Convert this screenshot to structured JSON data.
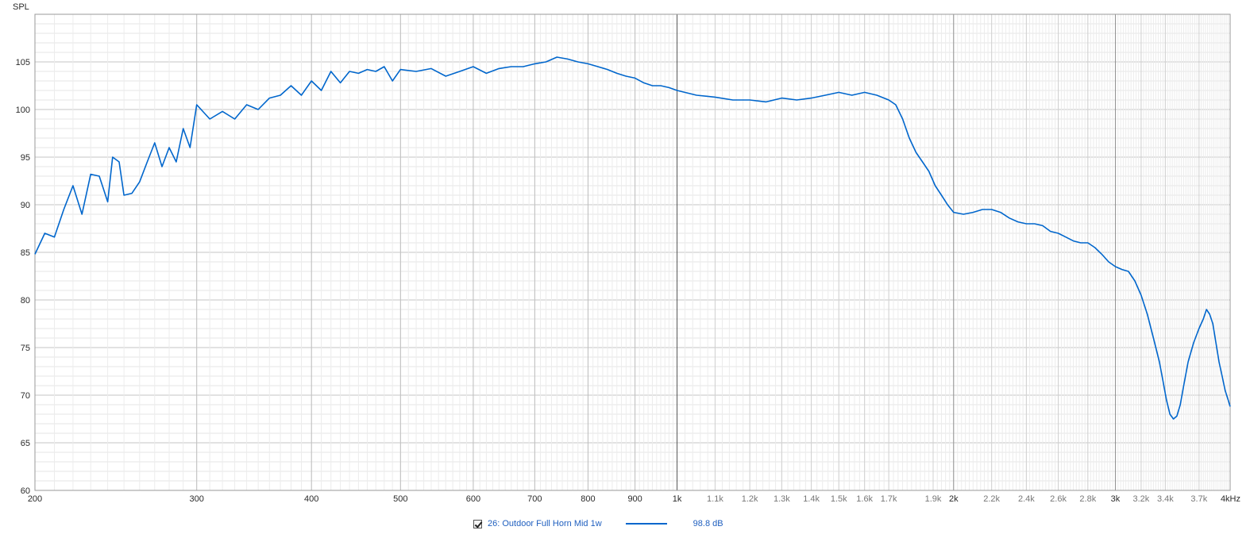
{
  "chart_data": {
    "type": "line",
    "ylabel": "SPL",
    "xunit": "kHz",
    "xscale": "log",
    "xlim": [
      200,
      4000
    ],
    "ylim": [
      60,
      110
    ],
    "yticks": [
      60,
      65,
      70,
      75,
      80,
      85,
      90,
      95,
      100,
      105
    ],
    "xticks_major": [
      {
        "value": 200,
        "label": "200"
      },
      {
        "value": 300,
        "label": "300"
      },
      {
        "value": 400,
        "label": "400"
      },
      {
        "value": 500,
        "label": "500"
      },
      {
        "value": 600,
        "label": "600"
      },
      {
        "value": 700,
        "label": "700"
      },
      {
        "value": 800,
        "label": "800"
      },
      {
        "value": 900,
        "label": "900"
      },
      {
        "value": 1000,
        "label": "1k"
      },
      {
        "value": 2000,
        "label": "2k"
      },
      {
        "value": 3000,
        "label": "3k"
      },
      {
        "value": 4000,
        "label": "4kHz"
      }
    ],
    "xticks_minor": [
      {
        "value": 1100,
        "label": "1.1k"
      },
      {
        "value": 1200,
        "label": "1.2k"
      },
      {
        "value": 1300,
        "label": "1.3k"
      },
      {
        "value": 1400,
        "label": "1.4k"
      },
      {
        "value": 1500,
        "label": "1.5k"
      },
      {
        "value": 1600,
        "label": "1.6k"
      },
      {
        "value": 1700,
        "label": "1.7k"
      },
      {
        "value": 1900,
        "label": "1.9k"
      },
      {
        "value": 2200,
        "label": "2.2k"
      },
      {
        "value": 2400,
        "label": "2.4k"
      },
      {
        "value": 2600,
        "label": "2.6k"
      },
      {
        "value": 2800,
        "label": "2.8k"
      },
      {
        "value": 3200,
        "label": "3.2k"
      },
      {
        "value": 3400,
        "label": "3.4k"
      },
      {
        "value": 3700,
        "label": "3.7k"
      }
    ],
    "grid": true,
    "series": [
      {
        "name": "26: Outdoor Full Horn Mid 1w",
        "color": "#0066cc",
        "legend_value": "98.8 dB",
        "points": [
          [
            200,
            84.8
          ],
          [
            205,
            87.0
          ],
          [
            210,
            86.6
          ],
          [
            215,
            89.5
          ],
          [
            220,
            92.0
          ],
          [
            225,
            89.0
          ],
          [
            230,
            93.2
          ],
          [
            235,
            93.0
          ],
          [
            240,
            90.3
          ],
          [
            243,
            95.0
          ],
          [
            247,
            94.5
          ],
          [
            250,
            91.0
          ],
          [
            255,
            91.2
          ],
          [
            260,
            92.4
          ],
          [
            265,
            94.5
          ],
          [
            270,
            96.5
          ],
          [
            275,
            94.0
          ],
          [
            280,
            96.0
          ],
          [
            285,
            94.5
          ],
          [
            290,
            98.0
          ],
          [
            295,
            96.0
          ],
          [
            300,
            100.5
          ],
          [
            310,
            99.0
          ],
          [
            320,
            99.8
          ],
          [
            330,
            99.0
          ],
          [
            340,
            100.5
          ],
          [
            350,
            100.0
          ],
          [
            360,
            101.2
          ],
          [
            370,
            101.5
          ],
          [
            380,
            102.5
          ],
          [
            390,
            101.5
          ],
          [
            400,
            103.0
          ],
          [
            410,
            102.0
          ],
          [
            420,
            104.0
          ],
          [
            430,
            102.8
          ],
          [
            440,
            104.0
          ],
          [
            450,
            103.8
          ],
          [
            460,
            104.2
          ],
          [
            470,
            104.0
          ],
          [
            480,
            104.5
          ],
          [
            490,
            103.0
          ],
          [
            500,
            104.2
          ],
          [
            520,
            104.0
          ],
          [
            540,
            104.3
          ],
          [
            560,
            103.5
          ],
          [
            580,
            104.0
          ],
          [
            600,
            104.5
          ],
          [
            620,
            103.8
          ],
          [
            640,
            104.3
          ],
          [
            660,
            104.5
          ],
          [
            680,
            104.5
          ],
          [
            700,
            104.8
          ],
          [
            720,
            105.0
          ],
          [
            740,
            105.5
          ],
          [
            760,
            105.3
          ],
          [
            780,
            105.0
          ],
          [
            800,
            104.8
          ],
          [
            820,
            104.5
          ],
          [
            840,
            104.2
          ],
          [
            860,
            103.8
          ],
          [
            880,
            103.5
          ],
          [
            900,
            103.3
          ],
          [
            920,
            102.8
          ],
          [
            940,
            102.5
          ],
          [
            960,
            102.5
          ],
          [
            980,
            102.3
          ],
          [
            1000,
            102.0
          ],
          [
            1050,
            101.5
          ],
          [
            1100,
            101.3
          ],
          [
            1150,
            101.0
          ],
          [
            1200,
            101.0
          ],
          [
            1250,
            100.8
          ],
          [
            1300,
            101.2
          ],
          [
            1350,
            101.0
          ],
          [
            1400,
            101.2
          ],
          [
            1450,
            101.5
          ],
          [
            1500,
            101.8
          ],
          [
            1550,
            101.5
          ],
          [
            1600,
            101.8
          ],
          [
            1650,
            101.5
          ],
          [
            1700,
            101.0
          ],
          [
            1730,
            100.5
          ],
          [
            1760,
            99.0
          ],
          [
            1790,
            97.0
          ],
          [
            1820,
            95.5
          ],
          [
            1850,
            94.5
          ],
          [
            1880,
            93.5
          ],
          [
            1910,
            92.0
          ],
          [
            1940,
            91.0
          ],
          [
            1970,
            90.0
          ],
          [
            2000,
            89.2
          ],
          [
            2050,
            89.0
          ],
          [
            2100,
            89.2
          ],
          [
            2150,
            89.5
          ],
          [
            2200,
            89.5
          ],
          [
            2250,
            89.2
          ],
          [
            2300,
            88.6
          ],
          [
            2350,
            88.2
          ],
          [
            2400,
            88.0
          ],
          [
            2450,
            88.0
          ],
          [
            2500,
            87.8
          ],
          [
            2550,
            87.2
          ],
          [
            2600,
            87.0
          ],
          [
            2650,
            86.6
          ],
          [
            2700,
            86.2
          ],
          [
            2750,
            86.0
          ],
          [
            2800,
            86.0
          ],
          [
            2850,
            85.5
          ],
          [
            2900,
            84.8
          ],
          [
            2950,
            84.0
          ],
          [
            3000,
            83.5
          ],
          [
            3050,
            83.2
          ],
          [
            3100,
            83.0
          ],
          [
            3150,
            82.0
          ],
          [
            3200,
            80.5
          ],
          [
            3250,
            78.5
          ],
          [
            3300,
            76.0
          ],
          [
            3350,
            73.5
          ],
          [
            3380,
            71.5
          ],
          [
            3410,
            69.5
          ],
          [
            3440,
            68.0
          ],
          [
            3470,
            67.5
          ],
          [
            3500,
            67.8
          ],
          [
            3530,
            69.0
          ],
          [
            3560,
            71.0
          ],
          [
            3600,
            73.5
          ],
          [
            3650,
            75.5
          ],
          [
            3700,
            77.0
          ],
          [
            3740,
            78.0
          ],
          [
            3770,
            79.0
          ],
          [
            3800,
            78.5
          ],
          [
            3830,
            77.5
          ],
          [
            3860,
            75.5
          ],
          [
            3890,
            73.5
          ],
          [
            3920,
            72.0
          ],
          [
            3950,
            70.5
          ],
          [
            3980,
            69.5
          ],
          [
            4000,
            68.8
          ]
        ]
      }
    ]
  },
  "legend": {
    "checked": true,
    "series_label": "26: Outdoor Full Horn Mid 1w",
    "value_label": "98.8 dB",
    "color": "#0066cc"
  }
}
